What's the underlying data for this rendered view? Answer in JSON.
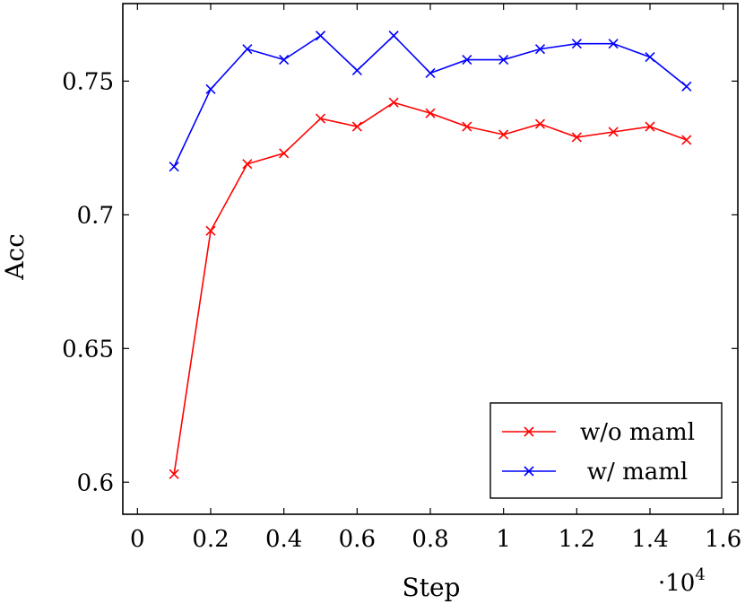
{
  "chart_data": {
    "type": "line",
    "xlabel": "Step",
    "ylabel": "Acc",
    "x_multiplier": {
      "base": "·10",
      "exponent": "4"
    },
    "xlim": [
      -0.04,
      1.64
    ],
    "ylim": [
      0.588,
      0.779
    ],
    "xticks": [
      0,
      0.2,
      0.4,
      0.6,
      0.8,
      1,
      1.2,
      1.4,
      1.6
    ],
    "xtick_labels": [
      "0",
      "0.2",
      "0.4",
      "0.6",
      "0.8",
      "1",
      "1.2",
      "1.4",
      "1.6"
    ],
    "yticks": [
      0.6,
      0.65,
      0.7,
      0.75
    ],
    "ytick_labels": [
      "0.6",
      "0.65",
      "0.7",
      "0.75"
    ],
    "grid": false,
    "legend_position": "bottom-right",
    "series": [
      {
        "name": "w/o maml",
        "color": "#ff0000",
        "marker": "x",
        "x": [
          0.1,
          0.2,
          0.3,
          0.4,
          0.5,
          0.6,
          0.7,
          0.8,
          0.9,
          1.0,
          1.1,
          1.2,
          1.3,
          1.4,
          1.5
        ],
        "y": [
          0.603,
          0.694,
          0.719,
          0.723,
          0.736,
          0.733,
          0.742,
          0.738,
          0.733,
          0.73,
          0.734,
          0.729,
          0.731,
          0.733,
          0.728
        ]
      },
      {
        "name": "w/ maml",
        "color": "#0000ff",
        "marker": "x",
        "x": [
          0.1,
          0.2,
          0.3,
          0.4,
          0.5,
          0.6,
          0.7,
          0.8,
          0.9,
          1.0,
          1.1,
          1.2,
          1.3,
          1.4,
          1.5
        ],
        "y": [
          0.718,
          0.747,
          0.762,
          0.758,
          0.767,
          0.754,
          0.767,
          0.753,
          0.758,
          0.758,
          0.762,
          0.764,
          0.764,
          0.759,
          0.748
        ]
      }
    ]
  }
}
